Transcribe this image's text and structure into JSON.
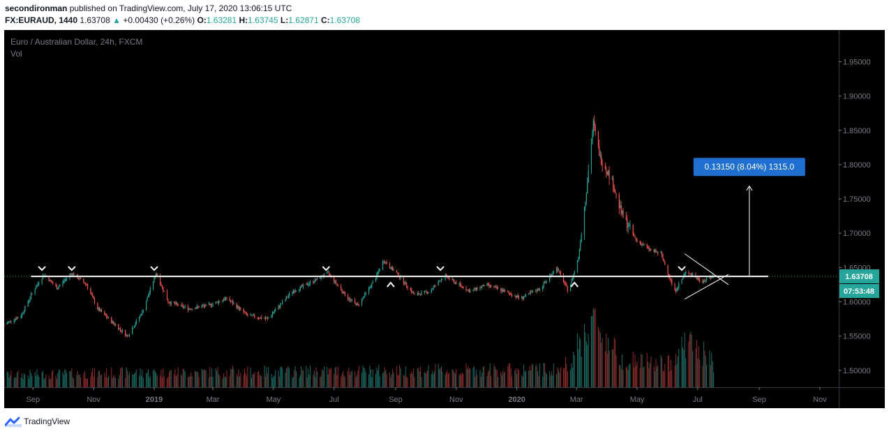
{
  "header": {
    "author": "secondironman",
    "published_text": "published on TradingView.com, July 17, 2020 13:06:15 UTC",
    "symbol": "FX:EURAUD, 1440",
    "last": "1.63708",
    "change_arrow": "▲",
    "change": "+0.00430 (+0.26%)",
    "o_label": "O:",
    "o_value": "1.63281",
    "h_label": "H:",
    "h_value": "1.63745",
    "l_label": "L:",
    "l_value": "1.62871",
    "c_label": "C:",
    "c_value": "1.63708"
  },
  "chart_data": {
    "type": "candlestick",
    "legend_title": "Euro / Australian Dollar, 24h, FXCM",
    "legend_vol": "Vol",
    "y_ticks": [
      "1.95000",
      "1.90000",
      "1.85000",
      "1.80000",
      "1.75000",
      "1.70000",
      "1.65000",
      "1.60000",
      "1.55000",
      "1.50000"
    ],
    "ylim": [
      1.4754,
      1.9963
    ],
    "x_ticks": [
      "Sep",
      "Nov",
      "2019",
      "Mar",
      "May",
      "Jul",
      "Sep",
      "Nov",
      "2020",
      "Mar",
      "May",
      "Jul",
      "Sep",
      "Nov"
    ],
    "x_tick_dates": [
      "2018-09-01",
      "2018-11-01",
      "2019-01-01",
      "2019-03-01",
      "2019-05-01",
      "2019-07-01",
      "2019-09-01",
      "2019-11-01",
      "2020-01-01",
      "2020-03-01",
      "2020-05-01",
      "2020-07-01",
      "2020-09-01",
      "2020-11-01"
    ],
    "x_range": [
      "2018-08-03",
      "2020-11-20"
    ],
    "price_path": [
      [
        "2018-08-03",
        1.567
      ],
      [
        "2018-08-20",
        1.58
      ],
      [
        "2018-09-01",
        1.615
      ],
      [
        "2018-09-12",
        1.64
      ],
      [
        "2018-09-25",
        1.62
      ],
      [
        "2018-10-10",
        1.642
      ],
      [
        "2018-10-25",
        1.625
      ],
      [
        "2018-11-05",
        1.59
      ],
      [
        "2018-11-20",
        1.57
      ],
      [
        "2018-12-05",
        1.55
      ],
      [
        "2018-12-20",
        1.585
      ],
      [
        "2019-01-03",
        1.642
      ],
      [
        "2019-01-15",
        1.6
      ],
      [
        "2019-02-05",
        1.59
      ],
      [
        "2019-02-25",
        1.595
      ],
      [
        "2019-03-15",
        1.605
      ],
      [
        "2019-04-05",
        1.58
      ],
      [
        "2019-04-25",
        1.575
      ],
      [
        "2019-05-20",
        1.615
      ],
      [
        "2019-06-10",
        1.63
      ],
      [
        "2019-06-25",
        1.642
      ],
      [
        "2019-07-15",
        1.605
      ],
      [
        "2019-07-25",
        1.595
      ],
      [
        "2019-08-10",
        1.63
      ],
      [
        "2019-08-20",
        1.66
      ],
      [
        "2019-09-03",
        1.64
      ],
      [
        "2019-09-20",
        1.61
      ],
      [
        "2019-10-05",
        1.615
      ],
      [
        "2019-10-20",
        1.638
      ],
      [
        "2019-11-15",
        1.615
      ],
      [
        "2019-12-01",
        1.625
      ],
      [
        "2019-12-20",
        1.615
      ],
      [
        "2020-01-05",
        1.605
      ],
      [
        "2020-01-25",
        1.62
      ],
      [
        "2020-02-10",
        1.65
      ],
      [
        "2020-02-22",
        1.615
      ],
      [
        "2020-03-03",
        1.665
      ],
      [
        "2020-03-10",
        1.75
      ],
      [
        "2020-03-18",
        1.86
      ],
      [
        "2020-03-25",
        1.81
      ],
      [
        "2020-04-05",
        1.78
      ],
      [
        "2020-04-15",
        1.73
      ],
      [
        "2020-04-30",
        1.69
      ],
      [
        "2020-05-15",
        1.675
      ],
      [
        "2020-05-25",
        1.67
      ],
      [
        "2020-06-08",
        1.615
      ],
      [
        "2020-06-20",
        1.645
      ],
      [
        "2020-07-05",
        1.63
      ],
      [
        "2020-07-17",
        1.6371
      ]
    ],
    "candle_range": [
      "2018-08-03",
      "2020-07-17"
    ],
    "volume_path": [
      [
        "2018-08-03",
        0.15
      ],
      [
        "2018-12-01",
        0.18
      ],
      [
        "2019-08-01",
        0.2
      ],
      [
        "2020-02-15",
        0.22
      ],
      [
        "2020-03-01",
        0.45
      ],
      [
        "2020-03-15",
        0.85
      ],
      [
        "2020-03-25",
        0.7
      ],
      [
        "2020-04-15",
        0.35
      ],
      [
        "2020-05-15",
        0.3
      ],
      [
        "2020-06-01",
        0.28
      ],
      [
        "2020-06-20",
        0.58
      ],
      [
        "2020-07-17",
        0.3
      ]
    ],
    "horizontal_line": {
      "price": 1.6371,
      "start": "2018-08-30",
      "end": "2020-09-10"
    },
    "dotted_last_line": {
      "price": 1.6371
    },
    "resistance_markers": [
      "2018-09-10",
      "2018-10-10",
      "2019-01-01",
      "2019-06-23",
      "2019-10-16",
      "2020-06-15"
    ],
    "support_markers": [
      "2019-08-27",
      "2020-02-28"
    ],
    "triangle": {
      "top": [
        [
          "2020-06-18",
          1.67
        ],
        [
          "2020-08-01",
          1.625
        ]
      ],
      "bottom": [
        [
          "2020-06-18",
          1.604
        ],
        [
          "2020-08-01",
          1.64
        ]
      ]
    },
    "measure": {
      "label": "0.13150 (8.04%) 1315.0",
      "date": "2020-08-22",
      "from": 1.6371,
      "to": 1.7686,
      "box_price": 1.7967
    },
    "last_price_label": "1.63708",
    "countdown_label": "07:53:48",
    "colors": {
      "up": "#26a69a",
      "down": "#ef5350",
      "line": "#ffffff",
      "accent": "#1e6fcf",
      "bg": "#000000"
    }
  },
  "footer": {
    "brand": "TradingView"
  }
}
